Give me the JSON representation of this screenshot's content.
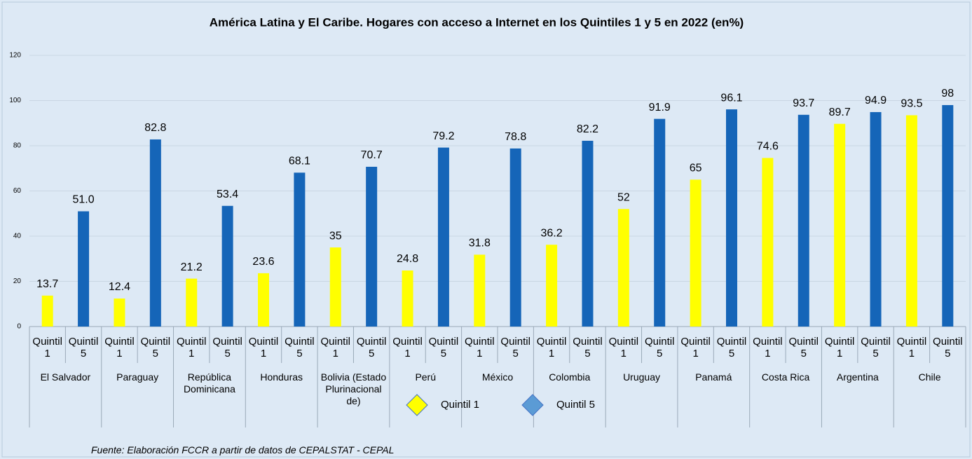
{
  "chart_data": {
    "type": "bar",
    "title": "América Latina y El Caribe. Hogares con acceso a Internet en los Quintiles 1 y 5 en 2022 (en%)",
    "categories": [
      "El Salvador",
      "Paraguay",
      "República Dominicana",
      "Honduras",
      "Bolivia (Estado Plurinacional de)",
      "Perú",
      "México",
      "Colombia",
      "Uruguay",
      "Panamá",
      "Costa Rica",
      "Argentina",
      "Chile"
    ],
    "series": [
      {
        "name": "Quintil 1",
        "color": "#ffff00",
        "values": [
          13.7,
          12.4,
          21.2,
          23.6,
          35,
          24.8,
          31.8,
          36.2,
          52,
          65,
          74.6,
          89.7,
          93.5
        ],
        "value_labels": [
          "13.7",
          "12.4",
          "21.2",
          "23.6",
          "35",
          "24.8",
          "31.8",
          "36.2",
          "52",
          "65",
          "74.6",
          "89.7",
          "93.5"
        ]
      },
      {
        "name": "Quintil 5",
        "color": "#1565b8",
        "values": [
          51.0,
          82.8,
          53.4,
          68.1,
          70.7,
          79.2,
          78.8,
          82.2,
          91.9,
          96.1,
          93.7,
          94.9,
          98
        ],
        "value_labels": [
          "51.0",
          "82.8",
          "53.4",
          "68.1",
          "70.7",
          "79.2",
          "78.8",
          "82.2",
          "91.9",
          "96.1",
          "93.7",
          "94.9",
          "98"
        ]
      }
    ],
    "ylim": [
      0,
      120
    ],
    "yticks": [
      0,
      20,
      40,
      60,
      80,
      100,
      120
    ],
    "grid": true,
    "source": "Fuente: Elaboración FCCR a partir de datos de CEPALSTAT - CEPAL"
  }
}
